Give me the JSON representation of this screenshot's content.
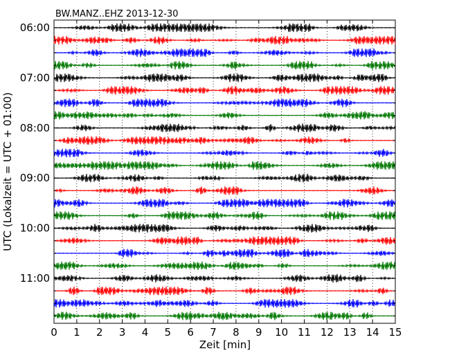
{
  "chart_data": {
    "type": "line",
    "title": "BW.MANZ..EHZ 2013-12-30",
    "xlabel": "Zeit  [min]",
    "ylabel": "UTC (Lokalzeit = UTC + 01:00)",
    "xlim": [
      0,
      15
    ],
    "x_ticks": [
      "0",
      "1",
      "2",
      "3",
      "4",
      "5",
      "6",
      "7",
      "8",
      "9",
      "10",
      "11",
      "12",
      "13",
      "14",
      "15"
    ],
    "y_tick_labels": [
      "06:00",
      "07:00",
      "08:00",
      "09:00",
      "10:00",
      "11:00"
    ],
    "rows_per_hour": 4,
    "row_minutes": 15,
    "trace_count": 24,
    "trace_colors": [
      "#000000",
      "#ff0000",
      "#0000ff",
      "#007700"
    ],
    "grid": "vertical dotted at each minute",
    "legend": "none"
  }
}
